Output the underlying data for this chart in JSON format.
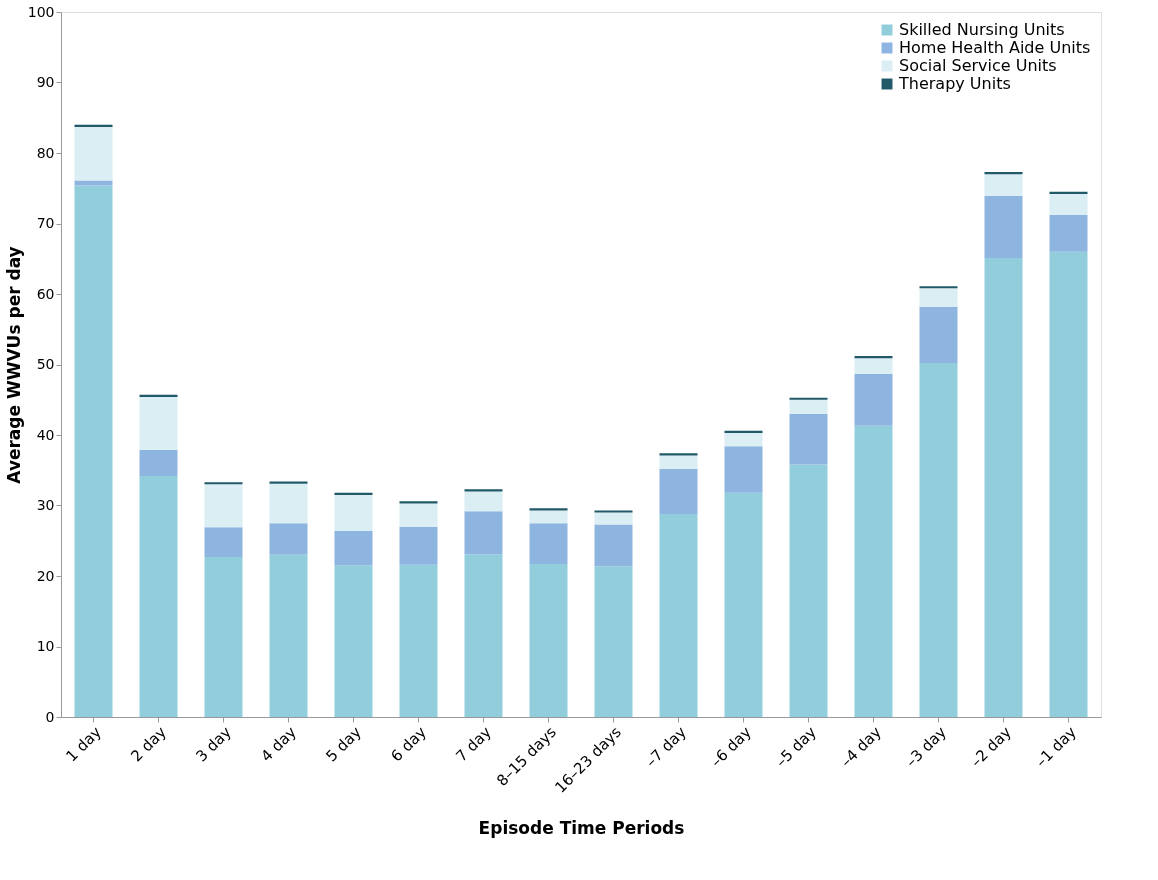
{
  "chart_data": {
    "type": "bar",
    "stacked": true,
    "xlabel": "Episode Time Periods",
    "ylabel": "Average  WWVUs per day",
    "categories": [
      "1 day",
      "2 day",
      "3 day",
      "4 day",
      "5 day",
      "6 day",
      "7 day",
      "8–15 days",
      "16–23 days",
      "–7 day",
      "–6 day",
      "–5 day",
      "–4 day",
      "–3 day",
      "–2 day",
      "–1 day"
    ],
    "series": [
      {
        "name": "Skilled Nursing Units",
        "color": "#92cddc",
        "values": [
          75.4,
          34.2,
          22.7,
          23.0,
          21.5,
          21.6,
          23.1,
          21.7,
          21.4,
          28.8,
          31.8,
          35.8,
          41.3,
          50.2,
          65.1,
          66.0
        ]
      },
      {
        "name": "Home Health Aide Units",
        "color": "#8eb4e0",
        "values": [
          0.7,
          3.7,
          4.2,
          4.5,
          4.9,
          5.4,
          6.1,
          5.8,
          5.9,
          6.4,
          6.6,
          7.2,
          7.4,
          8.0,
          8.8,
          5.2
        ]
      },
      {
        "name": "Social Service Units",
        "color": "#daeef3",
        "values": [
          7.6,
          7.5,
          6.1,
          5.6,
          5.1,
          3.3,
          2.8,
          1.8,
          1.7,
          1.9,
          1.9,
          2.0,
          2.2,
          2.6,
          3.1,
          3.0
        ]
      },
      {
        "name": "Therapy  Units",
        "color": "#215968",
        "values": [
          0.3,
          0.3,
          0.3,
          0.3,
          0.3,
          0.3,
          0.3,
          0.3,
          0.3,
          0.3,
          0.3,
          0.3,
          0.3,
          0.3,
          0.3,
          0.3
        ]
      }
    ],
    "ylim": [
      0,
      100
    ],
    "yticks": [
      0,
      10,
      20,
      30,
      40,
      50,
      60,
      70,
      80,
      90,
      100
    ],
    "grid": false,
    "legend": "top right"
  }
}
